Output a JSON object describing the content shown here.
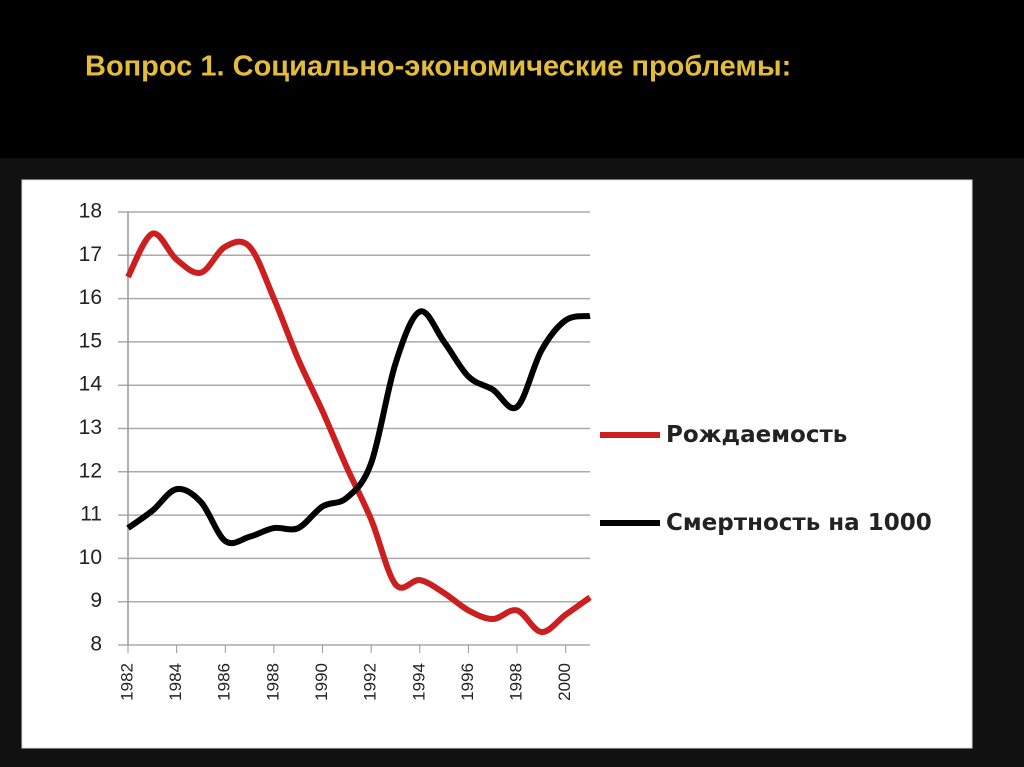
{
  "title": "Вопрос 1. Социально-экономические проблемы:",
  "chart_data": {
    "type": "line",
    "x": [
      1982,
      1983,
      1984,
      1985,
      1986,
      1987,
      1988,
      1989,
      1990,
      1991,
      1992,
      1993,
      1994,
      1995,
      1996,
      1997,
      1998,
      1999,
      2000,
      2001
    ],
    "xlim": [
      1982,
      2001
    ],
    "xticks": [
      1982,
      1984,
      1986,
      1988,
      1990,
      1992,
      1994,
      1996,
      1998,
      2000
    ],
    "ylim": [
      8,
      18
    ],
    "yticks": [
      8,
      9,
      10,
      11,
      12,
      13,
      14,
      15,
      16,
      17,
      18
    ],
    "grid": true,
    "legend": "right",
    "series": [
      {
        "name": "Рождаемость",
        "color": "#cc1f1f",
        "values": [
          16.5,
          17.5,
          16.9,
          16.6,
          17.2,
          17.2,
          16.0,
          14.6,
          13.4,
          12.1,
          10.9,
          9.4,
          9.5,
          9.2,
          8.8,
          8.6,
          8.8,
          8.3,
          8.7,
          9.1
        ]
      },
      {
        "name": "Смертность на 1000",
        "color": "#000000",
        "values": [
          10.7,
          11.1,
          11.6,
          11.3,
          10.4,
          10.5,
          10.7,
          10.7,
          11.2,
          11.4,
          12.2,
          14.5,
          15.7,
          15.0,
          14.2,
          13.9,
          13.5,
          14.8,
          15.5,
          15.6
        ]
      }
    ]
  }
}
